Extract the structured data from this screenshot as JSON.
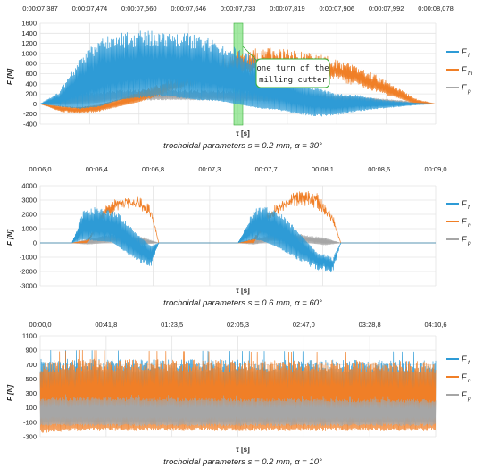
{
  "colors": {
    "ff": "#2E9BD6",
    "fn": "#F07F27",
    "fp": "#A6A6A6",
    "grid": "#E4E4E4",
    "band": "#7CE07C"
  },
  "chart_data": [
    {
      "type": "line",
      "caption": "trochoidal parameters s = 0.2 mm, α = 30°",
      "ylabel": "F [N]",
      "xlabel": "τ [s]",
      "ylim": [
        -400,
        1600
      ],
      "yticks": [
        -400,
        -200,
        0,
        200,
        400,
        600,
        800,
        1000,
        1200,
        1400,
        1600
      ],
      "time_ticks": [
        "0:00:07,387",
        "0:00:07,474",
        "0:00:07,560",
        "0:00:07,646",
        "0:00:07,733",
        "0:00:07,819",
        "0:00:07,906",
        "0:00:07,992",
        "0:00:08,078"
      ],
      "annotation": [
        "one turn of the",
        "milling cutter"
      ],
      "legend": [
        {
          "key": "ff",
          "main": "F",
          "sub": "f"
        },
        {
          "key": "fn",
          "main": "F",
          "sub": "fn"
        },
        {
          "key": "fp",
          "main": "F",
          "sub": "p"
        }
      ],
      "series": [
        {
          "key": "ff",
          "x": [
            0,
            0.05,
            0.1,
            0.15,
            0.2,
            0.25,
            0.3,
            0.35,
            0.4,
            0.45,
            0.5,
            0.55,
            0.6,
            0.65,
            0.7,
            0.75,
            0.8,
            0.85,
            0.9,
            0.95,
            1
          ],
          "upper": [
            0,
            250,
            900,
            1300,
            1400,
            1450,
            1450,
            1420,
            1380,
            1250,
            1100,
            900,
            700,
            450,
            320,
            200,
            180,
            100,
            50,
            20,
            0
          ],
          "lower": [
            0,
            -50,
            -100,
            -50,
            100,
            150,
            200,
            150,
            100,
            80,
            0,
            -80,
            -120,
            -200,
            -250,
            -220,
            -150,
            -100,
            -60,
            -20,
            0
          ]
        },
        {
          "key": "fn",
          "x": [
            0,
            0.05,
            0.1,
            0.15,
            0.2,
            0.25,
            0.3,
            0.35,
            0.4,
            0.45,
            0.5,
            0.55,
            0.6,
            0.65,
            0.7,
            0.75,
            0.8,
            0.85,
            0.9,
            0.95,
            1
          ],
          "upper": [
            0,
            -50,
            -80,
            -20,
            100,
            250,
            400,
            550,
            700,
            850,
            1050,
            1100,
            1120,
            1080,
            1000,
            900,
            750,
            580,
            350,
            100,
            0
          ],
          "lower": [
            0,
            -150,
            -200,
            -150,
            -50,
            50,
            200,
            350,
            500,
            600,
            700,
            750,
            780,
            760,
            680,
            600,
            450,
            300,
            150,
            0,
            0
          ]
        },
        {
          "key": "fp",
          "x": [
            0,
            0.05,
            0.1,
            0.2,
            0.3,
            0.4,
            0.5,
            0.6,
            0.7,
            0.8,
            0.9,
            1
          ],
          "upper": [
            0,
            100,
            200,
            280,
            300,
            280,
            260,
            230,
            200,
            150,
            80,
            0
          ],
          "lower": [
            0,
            -20,
            0,
            80,
            100,
            100,
            80,
            60,
            40,
            20,
            0,
            0
          ]
        }
      ]
    },
    {
      "type": "line",
      "caption": "trochoidal parameters s = 0.6 mm, α = 60°",
      "ylabel": "F [N]",
      "xlabel": "τ [s]",
      "ylim": [
        -3000,
        4000
      ],
      "yticks": [
        -3000,
        -2000,
        -1000,
        0,
        1000,
        2000,
        3000,
        4000
      ],
      "time_ticks": [
        "00:06,0",
        "00:06,4",
        "00:06,8",
        "00:07,3",
        "00:07,7",
        "00:08,1",
        "00:08,6",
        "00:09,0"
      ],
      "legend": [
        {
          "key": "ff",
          "main": "F",
          "sub": "f"
        },
        {
          "key": "fn",
          "main": "F",
          "sub": "n"
        },
        {
          "key": "fp",
          "main": "F",
          "sub": "p"
        }
      ],
      "series": [
        {
          "key": "ff",
          "x": [
            0,
            0.08,
            0.11,
            0.14,
            0.18,
            0.2,
            0.24,
            0.28,
            0.3,
            0.5,
            0.54,
            0.56,
            0.6,
            0.64,
            0.7,
            0.74,
            0.76,
            1
          ],
          "upper": [
            0,
            0,
            2300,
            2500,
            2400,
            2000,
            800,
            -300,
            0,
            0,
            2400,
            2600,
            2300,
            1200,
            -800,
            -1300,
            0,
            0
          ],
          "lower": [
            0,
            0,
            300,
            200,
            100,
            -300,
            -1200,
            -1700,
            0,
            0,
            300,
            200,
            -300,
            -1000,
            -1900,
            -2100,
            0,
            0
          ]
        },
        {
          "key": "fn",
          "x": [
            0,
            0.08,
            0.12,
            0.16,
            0.2,
            0.24,
            0.28,
            0.3,
            0.5,
            0.54,
            0.58,
            0.62,
            0.66,
            0.7,
            0.74,
            0.76,
            1
          ],
          "upper": [
            0,
            0,
            200,
            2500,
            3300,
            3400,
            2600,
            0,
            0,
            300,
            2400,
            3300,
            3700,
            3500,
            2000,
            0,
            0
          ],
          "lower": [
            0,
            0,
            0,
            2000,
            3000,
            3100,
            2300,
            0,
            0,
            0,
            2000,
            3000,
            3400,
            3100,
            1700,
            0,
            0
          ]
        },
        {
          "key": "fp",
          "x": [
            0,
            0.08,
            0.12,
            0.16,
            0.2,
            0.26,
            0.3,
            0.5,
            0.54,
            0.58,
            0.62,
            0.66,
            0.72,
            0.76,
            1
          ],
          "upper": [
            0,
            0,
            300,
            500,
            600,
            400,
            0,
            0,
            300,
            600,
            700,
            600,
            350,
            0,
            0
          ],
          "lower": [
            0,
            0,
            -100,
            0,
            100,
            -100,
            0,
            0,
            -100,
            100,
            200,
            100,
            -150,
            0,
            0
          ]
        }
      ]
    },
    {
      "type": "line",
      "caption": "trochoidal parameters s = 0.2 mm, α = 10°",
      "ylabel": "F [N]",
      "xlabel": "τ [s]",
      "ylim": [
        -300,
        1100
      ],
      "yticks": [
        -300,
        -100,
        100,
        300,
        500,
        700,
        900,
        1100
      ],
      "time_ticks": [
        "00:00,0",
        "00:41,8",
        "01:23,5",
        "02:05,3",
        "02:47,0",
        "03:28,8",
        "04:10,6"
      ],
      "legend": [
        {
          "key": "ff",
          "main": "F",
          "sub": "f"
        },
        {
          "key": "fn",
          "main": "F",
          "sub": "n"
        },
        {
          "key": "fp",
          "main": "F",
          "sub": "p"
        }
      ],
      "series": [
        {
          "key": "ff",
          "x": [
            0,
            1
          ],
          "upper": [
            780,
            760
          ],
          "lower": [
            -100,
            -100
          ]
        },
        {
          "key": "fn",
          "x": [
            0,
            0.1,
            0.5,
            0.9,
            1
          ],
          "upper": [
            750,
            780,
            760,
            760,
            740
          ],
          "lower": [
            -250,
            -220,
            -220,
            -220,
            -220
          ]
        },
        {
          "key": "fp",
          "x": [
            0,
            1
          ],
          "upper": [
            250,
            220
          ],
          "lower": [
            -150,
            -150
          ]
        }
      ]
    }
  ]
}
